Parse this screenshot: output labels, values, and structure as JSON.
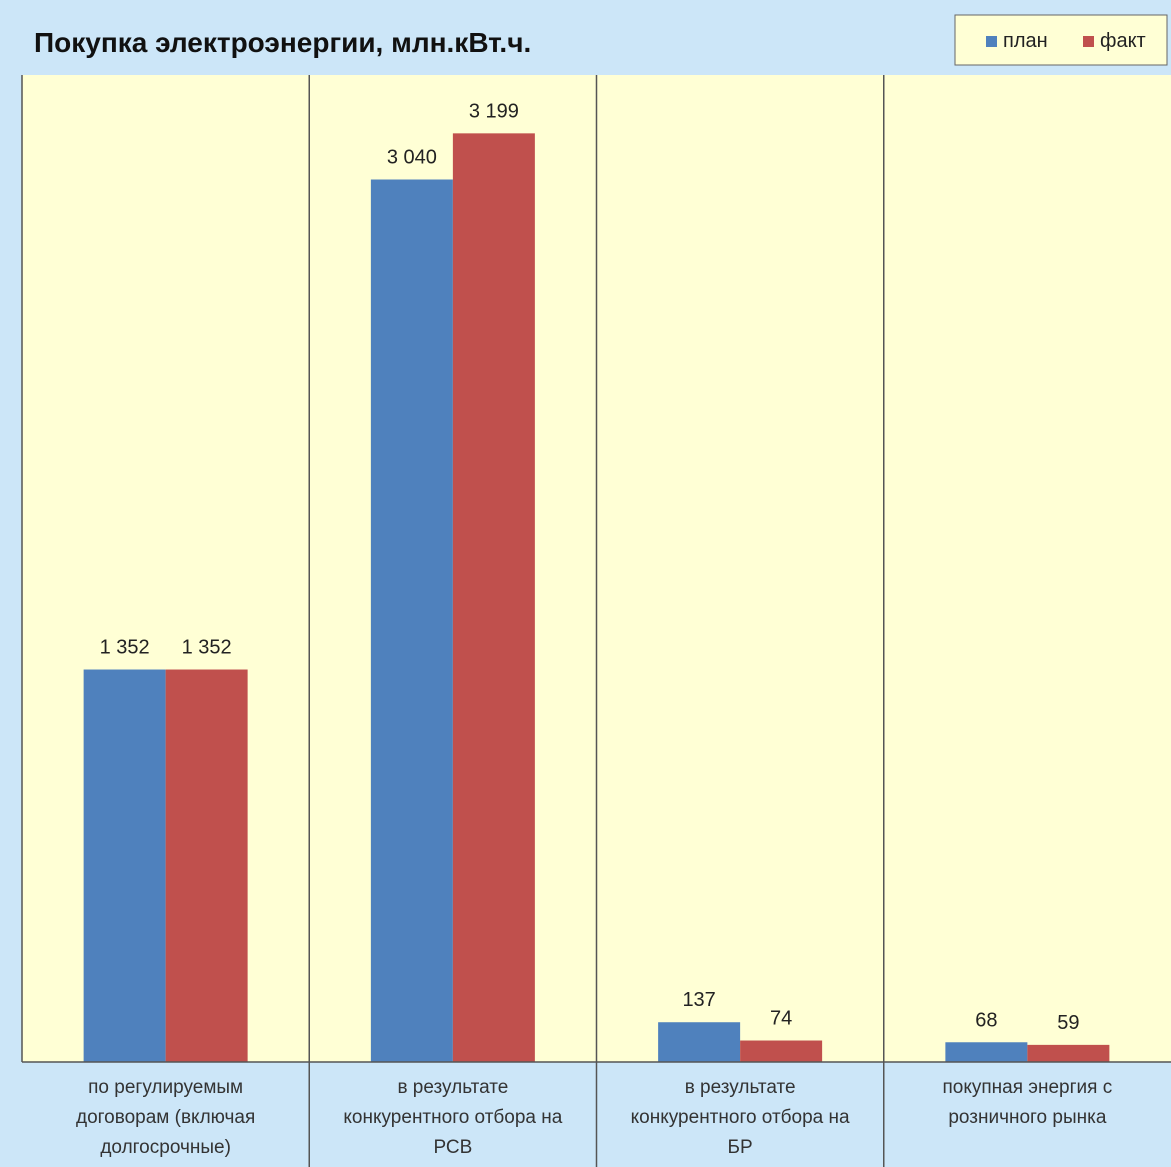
{
  "chart_data": {
    "type": "bar",
    "title": "Покупка электроэнергии, млн.кВт.ч.",
    "xlabel": "",
    "ylabel": "",
    "categories": [
      [
        "по регулируемым",
        "договорам (включая",
        "долгосрочные)"
      ],
      [
        "в результате",
        "конкурентного отбора на",
        "РСВ"
      ],
      [
        "в результате",
        "конкурентного отбора на",
        "БР"
      ],
      [
        "покупная энергия с",
        "розничного рынка"
      ]
    ],
    "series": [
      {
        "name": "план",
        "color": "#4f81bd",
        "values": [
          1352,
          3040,
          137,
          68
        ],
        "labels": [
          "1 352",
          "3 040",
          "137",
          "68"
        ]
      },
      {
        "name": "факт",
        "color": "#c0504d",
        "values": [
          1352,
          3199,
          74,
          59
        ],
        "labels": [
          "1 352",
          "3 199",
          "74",
          "59"
        ]
      }
    ],
    "ylim": [
      0,
      3400
    ],
    "grid": false,
    "legend": "top-right",
    "plot_background": "#ffffd5",
    "page_background": "#cce6f8"
  }
}
